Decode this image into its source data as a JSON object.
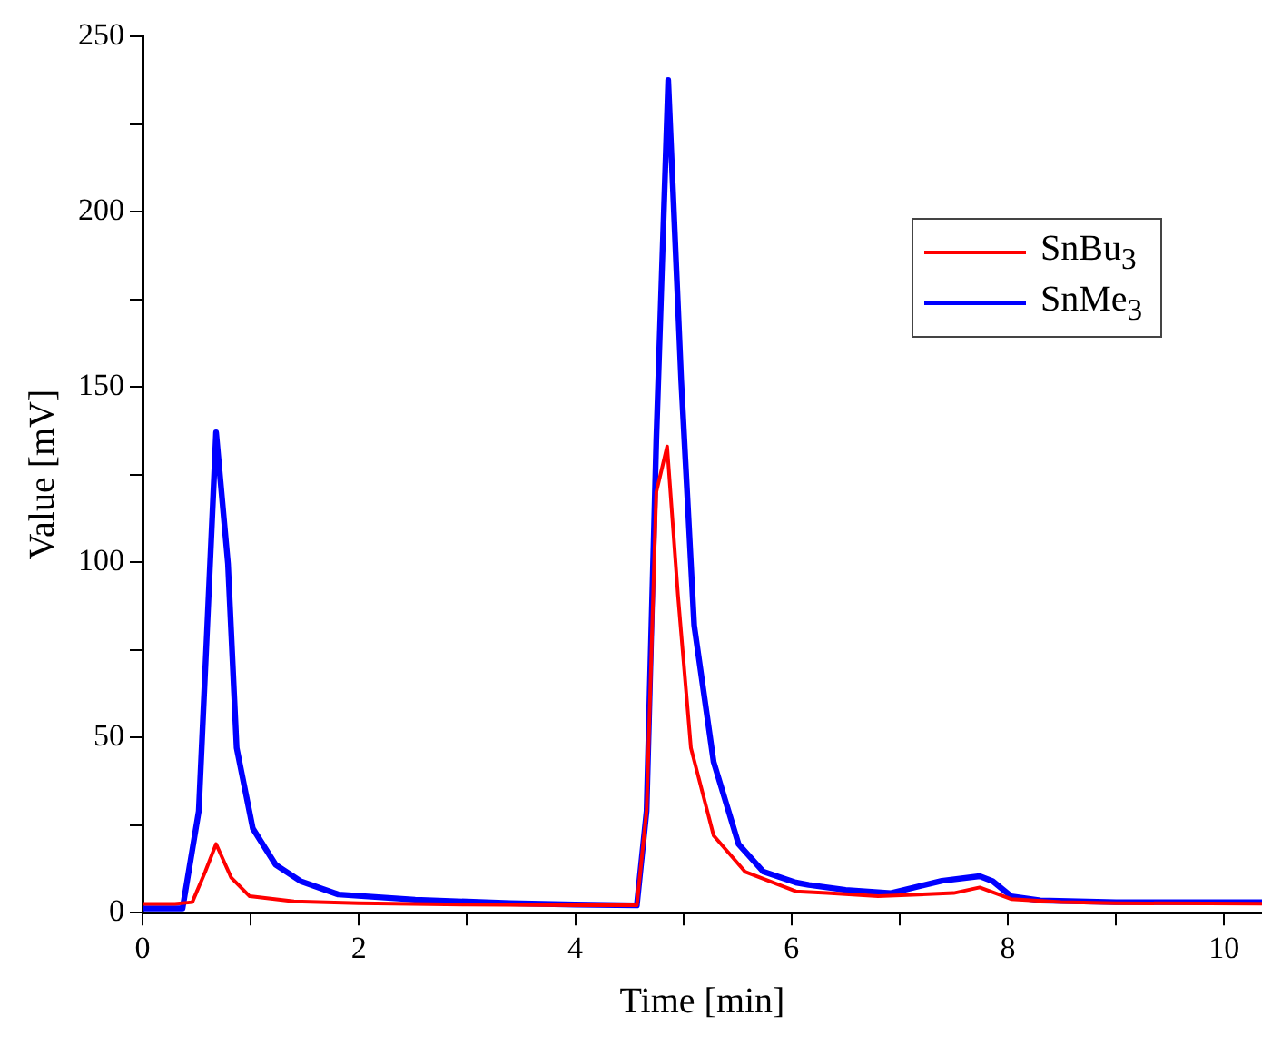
{
  "chart_data": {
    "type": "line",
    "xlabel": "Time [min]",
    "ylabel": "Value [mV]",
    "xlim": [
      0,
      10.35
    ],
    "xticks": [
      0,
      {
        "value": 1,
        "label": null
      },
      2,
      {
        "value": 3,
        "label": null
      },
      4,
      {
        "value": 5,
        "label": null
      },
      6,
      {
        "value": 7,
        "label": null
      },
      8,
      {
        "value": 9,
        "label": null
      },
      10
    ],
    "ylim": [
      0,
      250
    ],
    "yticks": [
      0,
      {
        "value": 25,
        "label": null
      },
      50,
      {
        "value": 75,
        "label": null
      },
      100,
      {
        "value": 125,
        "label": null
      },
      150,
      {
        "value": 175,
        "label": null
      },
      200,
      {
        "value": 225,
        "label": null
      },
      250
    ],
    "grid": false,
    "legend": "top right",
    "marker": "none",
    "line_style": "solid",
    "series": [
      {
        "name": "SnBu$_{3}$",
        "color": "#ff0000",
        "x": [
          0,
          0.3,
          0.46,
          0.58,
          0.68,
          0.82,
          0.99,
          1.4,
          2,
          3,
          4,
          4.57,
          4.66,
          4.75,
          4.85,
          4.95,
          5.07,
          5.28,
          5.57,
          6.04,
          6.33,
          6.8,
          7.5,
          7.74,
          8.03,
          8.49,
          9,
          10.35
        ],
        "values": [
          2.5,
          2.5,
          3,
          11.7,
          19.6,
          10,
          4.7,
          3.2,
          2.7,
          2.3,
          2.1,
          2.1,
          29,
          120,
          133,
          90.7,
          47,
          22,
          11.7,
          6.1,
          5.6,
          4.7,
          5.6,
          7.2,
          3.9,
          3,
          2.7,
          2.6
        ]
      },
      {
        "name": "SnMe$_{3}$",
        "color": "#0000ff",
        "x": [
          0,
          0.37,
          0.52,
          0.68,
          0.79,
          0.87,
          1.02,
          1.23,
          1.46,
          1.81,
          2.52,
          3.4,
          4,
          4.57,
          4.66,
          4.75,
          4.86,
          4.98,
          5.1,
          5.28,
          5.51,
          5.74,
          6.04,
          6.16,
          6.5,
          6.92,
          7.39,
          7.74,
          7.86,
          8.03,
          8.3,
          9,
          10.35
        ],
        "values": [
          1.2,
          1.2,
          29,
          137,
          99.5,
          47,
          24,
          13.7,
          9,
          5.2,
          3.7,
          2.7,
          2.3,
          2.1,
          29,
          135,
          237.5,
          152,
          82,
          43,
          19.6,
          11.7,
          8.6,
          7.9,
          6.5,
          5.6,
          9.1,
          10.4,
          9,
          4.7,
          3.5,
          3,
          3
        ]
      }
    ]
  }
}
